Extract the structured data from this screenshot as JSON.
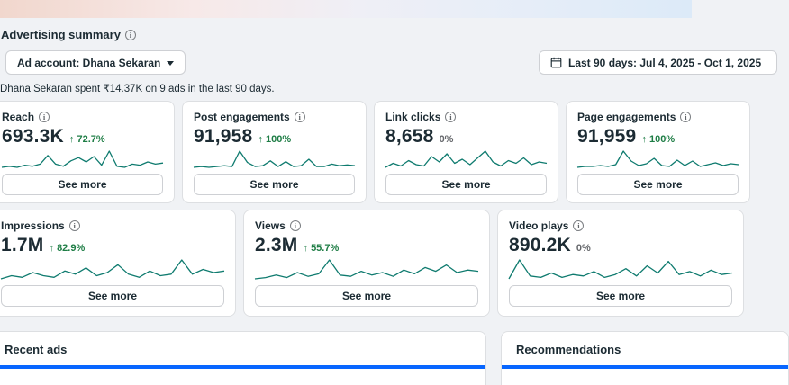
{
  "header": {
    "title": "Advertising summary",
    "ad_account_label": "Ad account: Dhana Sekaran",
    "date_range_label": "Last 90 days: Jul 4, 2025 - Oct 1, 2025",
    "summary_text": "Dhana Sekaran spent ₹14.37K on 9 ads in the last 90 days."
  },
  "labels": {
    "see_more": "See more"
  },
  "colors": {
    "sparkline": "#0f7b6f",
    "positive": "#1e7d45",
    "neutral": "#65676b",
    "accent_blue": "#0866ff"
  },
  "cards_row1": [
    {
      "title": "Reach",
      "value": "693.3K",
      "delta": "72.7%",
      "trend": "up",
      "spark": [
        3,
        4,
        3,
        5,
        4,
        6,
        14,
        6,
        4,
        9,
        12,
        8,
        13,
        5,
        18,
        4,
        3,
        6,
        5,
        8,
        6,
        7
      ]
    },
    {
      "title": "Post engagements",
      "value": "91,958",
      "delta": "100%",
      "trend": "up",
      "spark": [
        2,
        3,
        2,
        3,
        4,
        3,
        22,
        8,
        3,
        4,
        10,
        3,
        9,
        3,
        4,
        12,
        3,
        3,
        6,
        4,
        5,
        4
      ]
    },
    {
      "title": "Link clicks",
      "value": "8,658",
      "delta": "0%",
      "trend": "flat",
      "spark": [
        2,
        5,
        3,
        7,
        4,
        3,
        10,
        6,
        12,
        5,
        8,
        4,
        9,
        14,
        6,
        3,
        7,
        5,
        9,
        4,
        6,
        5
      ]
    },
    {
      "title": "Page engagements",
      "value": "91,959",
      "delta": "100%",
      "trend": "up",
      "spark": [
        2,
        3,
        3,
        4,
        3,
        5,
        20,
        9,
        4,
        6,
        12,
        4,
        3,
        10,
        4,
        9,
        3,
        5,
        7,
        4,
        6,
        5
      ]
    }
  ],
  "cards_row2": [
    {
      "title": "Impressions",
      "value": "1.7M",
      "delta": "82.9%",
      "trend": "up",
      "spark": [
        3,
        5,
        4,
        7,
        5,
        4,
        8,
        6,
        10,
        5,
        7,
        12,
        6,
        4,
        8,
        5,
        6,
        15,
        6,
        9,
        7,
        8
      ]
    },
    {
      "title": "Views",
      "value": "2.3M",
      "delta": "55.7%",
      "trend": "up",
      "spark": [
        3,
        4,
        6,
        4,
        8,
        5,
        7,
        18,
        6,
        5,
        9,
        6,
        8,
        5,
        10,
        7,
        12,
        9,
        14,
        8,
        10,
        9
      ]
    },
    {
      "title": "Video plays",
      "value": "890.2K",
      "delta": "0%",
      "trend": "flat",
      "spark": [
        3,
        16,
        5,
        4,
        7,
        4,
        6,
        5,
        8,
        4,
        6,
        10,
        5,
        12,
        7,
        15,
        6,
        8,
        5,
        9,
        6,
        7
      ]
    }
  ],
  "sections": {
    "recent_ads": "Recent ads",
    "recommendations": "Recommendations"
  }
}
